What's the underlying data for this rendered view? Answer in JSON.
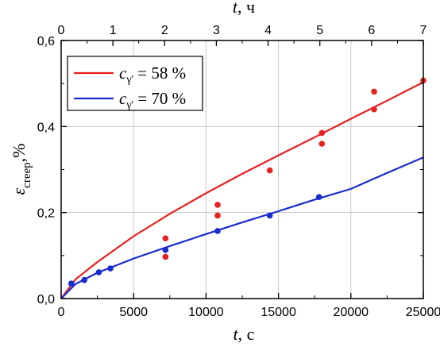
{
  "chart_data": {
    "type": "line",
    "x_axis": {
      "label_var": "t",
      "label_unit": ", с",
      "range": [
        0,
        25000
      ],
      "ticks": [
        0,
        5000,
        10000,
        15000,
        20000,
        25000
      ],
      "tick_labels": [
        "0",
        "5000",
        "10000",
        "15000",
        "20000",
        "25000"
      ]
    },
    "x_top_axis": {
      "label_var": "t",
      "label_unit": ", ч",
      "range": [
        0,
        7
      ],
      "ticks": [
        0,
        1,
        2,
        3,
        4,
        5,
        6,
        7
      ],
      "tick_labels": [
        "0",
        "1",
        "2",
        "3",
        "4",
        "5",
        "6",
        "7"
      ]
    },
    "y_axis": {
      "label_main": "ε",
      "label_sub": "creep",
      "label_unit": ",%",
      "range": [
        0.0,
        0.6
      ],
      "ticks": [
        0.0,
        0.2,
        0.4,
        0.6
      ],
      "tick_labels": [
        "0,0",
        "0,2",
        "0,4",
        "0,6"
      ]
    },
    "grid": true,
    "legend_position": "top-left",
    "series": [
      {
        "name": "c",
        "legend_sub": "γ'",
        "legend_value": " = 58 %",
        "color": "#e8201f",
        "fit": {
          "x": [
            0,
            1000,
            2500,
            5000,
            7500,
            10000,
            12500,
            15000,
            17500,
            20000,
            22500,
            25000
          ],
          "y": [
            0.0,
            0.045,
            0.085,
            0.145,
            0.197,
            0.245,
            0.29,
            0.333,
            0.375,
            0.418,
            0.46,
            0.503
          ]
        },
        "points": {
          "x": [
            7200,
            7200,
            10800,
            10800,
            14400,
            18000,
            18000,
            21600,
            21600,
            25000
          ],
          "y": [
            0.097,
            0.14,
            0.193,
            0.218,
            0.298,
            0.36,
            0.385,
            0.44,
            0.481,
            0.507
          ]
        }
      },
      {
        "name": "c",
        "legend_sub": "γ'",
        "legend_value": " = 70 %",
        "color": "#1a2bd0",
        "fit": {
          "x": [
            0,
            1000,
            2500,
            5000,
            7500,
            10000,
            12500,
            15000,
            17500,
            20000,
            22500,
            25000
          ],
          "y": [
            0.0,
            0.034,
            0.06,
            0.093,
            0.122,
            0.15,
            0.177,
            0.203,
            0.23,
            0.255,
            0.292,
            0.328
          ]
        },
        "points": {
          "x": [
            700,
            1600,
            2600,
            3400,
            7200,
            10800,
            14400,
            17800
          ],
          "y": [
            0.035,
            0.043,
            0.061,
            0.07,
            0.113,
            0.157,
            0.193,
            0.236
          ]
        }
      }
    ]
  }
}
